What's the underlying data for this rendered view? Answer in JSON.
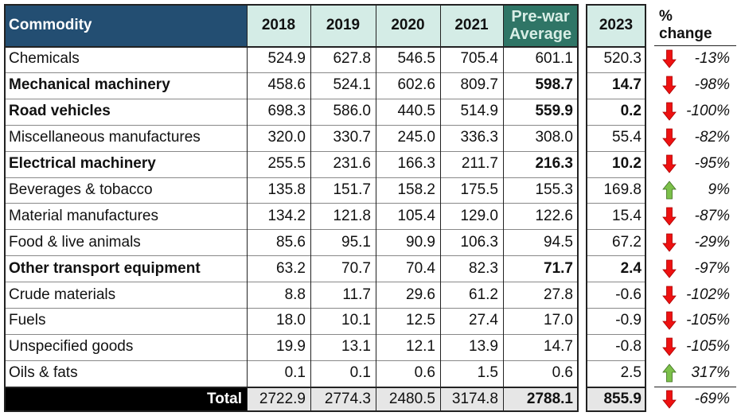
{
  "colors": {
    "header_commodity": "#234e72",
    "header_years": "#d4ece6",
    "header_prewar": "#2f7566",
    "total_bg": "#000000",
    "total_cells": "#e6e6e6",
    "down_arrow": "#ee1111",
    "up_arrow": "#7cc04a"
  },
  "headers": {
    "commodity": "Commodity",
    "years": [
      "2018",
      "2019",
      "2020",
      "2021"
    ],
    "prewar_line1": "Pre-war",
    "prewar_line2": "Average",
    "y2023": "2023",
    "pct_line1": "%",
    "pct_line2": "change"
  },
  "rows": [
    {
      "name": "Chemicals",
      "bold": false,
      "values": [
        "524.9",
        "627.8",
        "546.5",
        "705.4"
      ],
      "prewar": "601.1",
      "y2023": "520.3",
      "change": "-13%",
      "dir": "down"
    },
    {
      "name": "Mechanical machinery",
      "bold": true,
      "values": [
        "458.6",
        "524.1",
        "602.6",
        "809.7"
      ],
      "prewar": "598.7",
      "y2023": "14.7",
      "change": "-98%",
      "dir": "down"
    },
    {
      "name": "Road vehicles",
      "bold": true,
      "values": [
        "698.3",
        "586.0",
        "440.5",
        "514.9"
      ],
      "prewar": "559.9",
      "y2023": "0.2",
      "change": "-100%",
      "dir": "down"
    },
    {
      "name": "Miscellaneous manufactures",
      "bold": false,
      "values": [
        "320.0",
        "330.7",
        "245.0",
        "336.3"
      ],
      "prewar": "308.0",
      "y2023": "55.4",
      "change": "-82%",
      "dir": "down"
    },
    {
      "name": "Electrical machinery",
      "bold": true,
      "values": [
        "255.5",
        "231.6",
        "166.3",
        "211.7"
      ],
      "prewar": "216.3",
      "y2023": "10.2",
      "change": "-95%",
      "dir": "down"
    },
    {
      "name": "Beverages & tobacco",
      "bold": false,
      "values": [
        "135.8",
        "151.7",
        "158.2",
        "175.5"
      ],
      "prewar": "155.3",
      "y2023": "169.8",
      "change": "9%",
      "dir": "up"
    },
    {
      "name": "Material manufactures",
      "bold": false,
      "values": [
        "134.2",
        "121.8",
        "105.4",
        "129.0"
      ],
      "prewar": "122.6",
      "y2023": "15.4",
      "change": "-87%",
      "dir": "down"
    },
    {
      "name": "Food & live animals",
      "bold": false,
      "values": [
        "85.6",
        "95.1",
        "90.9",
        "106.3"
      ],
      "prewar": "94.5",
      "y2023": "67.2",
      "change": "-29%",
      "dir": "down"
    },
    {
      "name": "Other transport equipment",
      "bold": true,
      "values": [
        "63.2",
        "70.7",
        "70.4",
        "82.3"
      ],
      "prewar": "71.7",
      "y2023": "2.4",
      "change": "-97%",
      "dir": "down"
    },
    {
      "name": "Crude materials",
      "bold": false,
      "values": [
        "8.8",
        "11.7",
        "29.6",
        "61.2"
      ],
      "prewar": "27.8",
      "y2023": "-0.6",
      "change": "-102%",
      "dir": "down"
    },
    {
      "name": "Fuels",
      "bold": false,
      "values": [
        "18.0",
        "10.1",
        "12.5",
        "27.4"
      ],
      "prewar": "17.0",
      "y2023": "-0.9",
      "change": "-105%",
      "dir": "down"
    },
    {
      "name": "Unspecified goods",
      "bold": false,
      "values": [
        "19.9",
        "13.1",
        "12.1",
        "13.9"
      ],
      "prewar": "14.7",
      "y2023": "-0.8",
      "change": "-105%",
      "dir": "down"
    },
    {
      "name": "Oils & fats",
      "bold": false,
      "values": [
        "0.1",
        "0.1",
        "0.6",
        "1.5"
      ],
      "prewar": "0.6",
      "y2023": "2.5",
      "change": "317%",
      "dir": "up"
    }
  ],
  "total": {
    "label": "Total",
    "values": [
      "2722.9",
      "2774.3",
      "2480.5",
      "3174.8"
    ],
    "prewar": "2788.1",
    "y2023": "855.9",
    "change": "-69%",
    "dir": "down"
  }
}
